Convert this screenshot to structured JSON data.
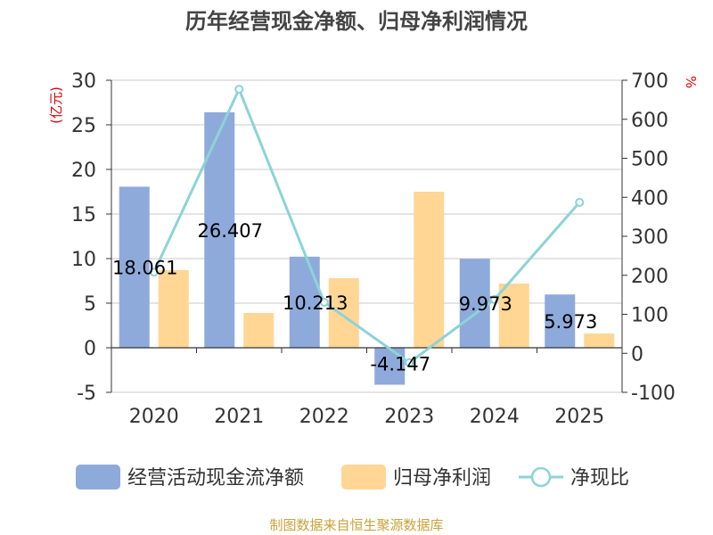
{
  "chart_data": {
    "type": "bar",
    "title": "历年经营现金净额、归母净利润情况",
    "categories": [
      "2020",
      "2021",
      "2022",
      "2023",
      "2024",
      "2025"
    ],
    "series": [
      {
        "name": "经营活动现金流净额",
        "kind": "bar",
        "axis": "left",
        "color": "#8eaadb",
        "values": [
          18.061,
          26.407,
          10.213,
          -4.147,
          9.973,
          5.973
        ],
        "labels": [
          "18.061",
          "26.407",
          "10.213",
          "-4.147",
          "9.973",
          "5.973"
        ]
      },
      {
        "name": "归母净利润",
        "kind": "bar",
        "axis": "left",
        "color": "#ffd694",
        "values": [
          8.7,
          3.9,
          7.8,
          17.5,
          7.2,
          1.6
        ]
      },
      {
        "name": "净现比",
        "kind": "line",
        "axis": "right",
        "color": "#8dd3d8",
        "values": [
          208,
          677,
          131,
          -24,
          138,
          387
        ]
      }
    ],
    "left_axis": {
      "unit": "(亿元)",
      "min": -5,
      "max": 30,
      "ticks": [
        30,
        25,
        20,
        15,
        10,
        5,
        0,
        -5
      ]
    },
    "right_axis": {
      "unit": "%",
      "min": -100,
      "max": 700,
      "ticks": [
        700,
        600,
        500,
        400,
        300,
        200,
        100,
        0,
        -100
      ]
    },
    "grid": true,
    "legend_position": "bottom"
  },
  "source_text": "制图数据来自恒生聚源数据库"
}
